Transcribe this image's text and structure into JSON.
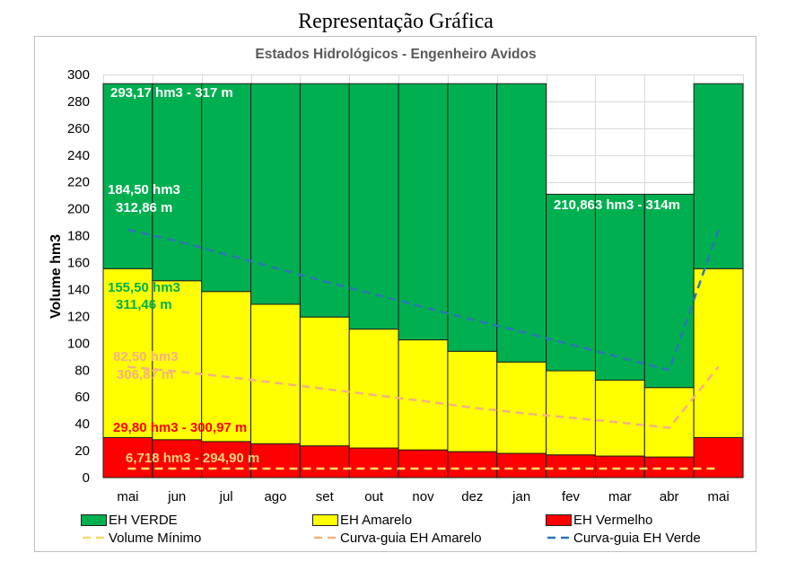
{
  "heading": "Representação Gráfica",
  "chart_data": {
    "type": "bar",
    "stacked": true,
    "title": "Estados Hidrológicos - Engenheiro Avidos",
    "ylabel": "Volume hm3",
    "ylim": [
      0,
      300
    ],
    "yticks": [
      0,
      20,
      40,
      60,
      80,
      100,
      120,
      140,
      160,
      180,
      200,
      220,
      240,
      260,
      280,
      300
    ],
    "grid": true,
    "categories": [
      "mai",
      "jun",
      "jul",
      "ago",
      "set",
      "out",
      "nov",
      "dez",
      "jan",
      "fev",
      "mar",
      "abr",
      "mai"
    ],
    "bar_series": [
      {
        "name": "EH Vermelho",
        "color": "#FF0000",
        "values": [
          29.8,
          28.2,
          26.8,
          25.2,
          23.6,
          22.0,
          20.6,
          19.3,
          18.0,
          16.9,
          16.0,
          15.3,
          29.8
        ]
      },
      {
        "name": "EH Amarelo",
        "color": "#FFFF00",
        "values": [
          155.5,
          146.5,
          138.5,
          129.0,
          119.5,
          110.5,
          102.5,
          94.0,
          86.0,
          79.5,
          72.5,
          67.0,
          155.5
        ]
      },
      {
        "name": "EH VERDE",
        "color": "#00B050",
        "values": [
          293.17,
          293.17,
          293.17,
          293.17,
          293.17,
          293.17,
          293.17,
          293.17,
          293.17,
          210.863,
          210.863,
          210.863,
          293.17
        ]
      }
    ],
    "line_series": [
      {
        "name": "Volume Mínimo",
        "color": "#FFD966",
        "values": [
          6.718,
          6.718,
          6.718,
          6.718,
          6.718,
          6.718,
          6.718,
          6.718,
          6.718,
          6.718,
          6.718,
          6.718,
          6.718
        ]
      },
      {
        "name": "Curva-guia EH Amarelo",
        "color": "#F4B183",
        "values": [
          82.5,
          79,
          75,
          70.5,
          66,
          61.5,
          57,
          52,
          48,
          44.5,
          41,
          37,
          82.5
        ]
      },
      {
        "name": "Curva-guia EH Verde",
        "color": "#2E75B6",
        "values": [
          184.5,
          176,
          166,
          156,
          146,
          136.5,
          127,
          117.5,
          108.5,
          99,
          89.5,
          80,
          184.5
        ]
      }
    ],
    "annotations": [
      {
        "text": "293,17 hm3 - 317 m",
        "color": "#FFFFFF"
      },
      {
        "text": "184,50 hm3",
        "color": "#FFFFFF"
      },
      {
        "text": "312,86 m",
        "color": "#FFFFFF"
      },
      {
        "text": "155,50 hm3",
        "color": "#00B050"
      },
      {
        "text": "311,46 m",
        "color": "#00B050"
      },
      {
        "text": "82,50 hm3",
        "color": "#F4B183"
      },
      {
        "text": "306,87 m",
        "color": "#F4B183"
      },
      {
        "text": "29,80 hm3 - 300,97 m",
        "color": "#FF0000"
      },
      {
        "text": "6,718 hm3 - 294,90 m",
        "color": "#FFD27F"
      },
      {
        "text": "210,863 hm3 - 314m",
        "color": "#FFFFFF"
      }
    ]
  }
}
